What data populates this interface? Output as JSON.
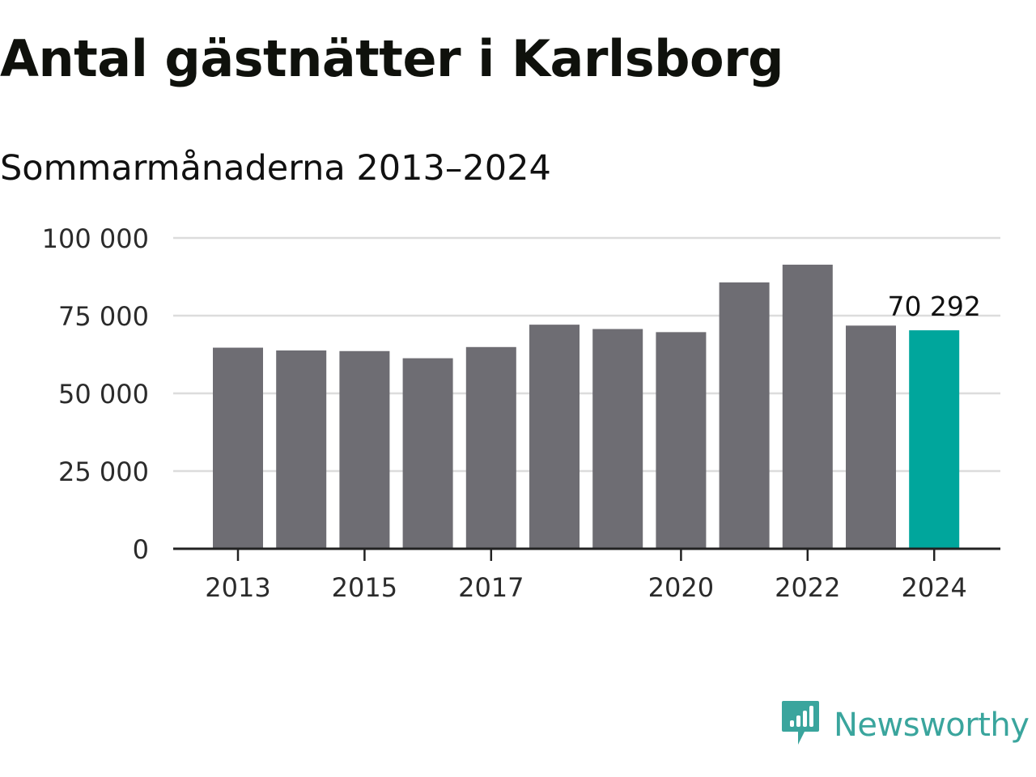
{
  "chart_data": {
    "type": "bar",
    "title": "Antal gästnätter i Karlsborg",
    "subtitle": "Sommarmånaderna 2013–2024",
    "xlabel": "",
    "ylabel": "",
    "categories": [
      "2013",
      "2014",
      "2015",
      "2016",
      "2017",
      "2018",
      "2019",
      "2020",
      "2021",
      "2022",
      "2023",
      "2024"
    ],
    "values": [
      64700,
      63800,
      63600,
      61300,
      64900,
      72100,
      70700,
      69700,
      85700,
      91400,
      71800,
      70292
    ],
    "ylim": [
      0,
      100000
    ],
    "y_ticks": [
      0,
      25000,
      50000,
      75000,
      100000
    ],
    "y_tick_labels": [
      "0",
      "25 000",
      "50 000",
      "75 000",
      "100 000"
    ],
    "x_tick_labels": [
      "2013",
      "2015",
      "2017",
      "2020",
      "2022",
      "2024"
    ],
    "highlight_index": 11,
    "highlight_label": "70 292",
    "grid": true,
    "colors": {
      "bar": "#6e6d73",
      "highlight": "#00a69c",
      "grid": "#dcdcdc",
      "axis": "#222222"
    }
  },
  "branding": {
    "name": "Newsworthy",
    "icon": "newsworthy-logo-icon",
    "color": "#3aa59d"
  }
}
